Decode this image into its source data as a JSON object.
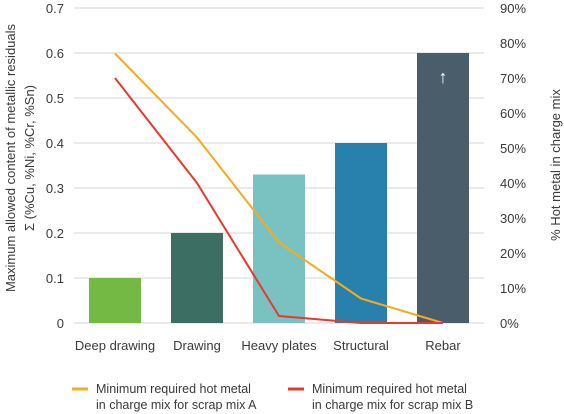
{
  "chart_data": {
    "type": "bar",
    "categories": [
      "Deep drawing",
      "Drawing",
      "Heavy plates",
      "Structural",
      "Rebar"
    ],
    "series": [
      {
        "values": [
          0.1,
          0.2,
          0.33,
          0.4,
          0.6
        ],
        "colors": [
          "#74b944",
          "#3d6e63",
          "#79c2c1",
          "#2881ad",
          "#4a5d6a"
        ]
      }
    ],
    "rebar_marker": "↑",
    "lines": [
      {
        "name": "Minimum required hot metal in charge mix for scrap mix A",
        "legend_lines": [
          "Minimum required hot metal",
          "in charge mix for scrap mix A"
        ],
        "color": "#f4ab1f",
        "axis": "right",
        "points": [
          {
            "x": "Deep drawing",
            "y": 77
          },
          {
            "x": "Drawing",
            "y": 53
          },
          {
            "x": "Heavy plates",
            "y": 23
          },
          {
            "x": "Structural",
            "y": 7
          },
          {
            "x": "Rebar",
            "y": 0
          }
        ]
      },
      {
        "name": "Minimum required hot metal in charge mix for scrap mix B",
        "legend_lines": [
          "Minimum required hot metal",
          "in charge mix for scrap mix B"
        ],
        "color": "#e8392e",
        "axis": "right",
        "points": [
          {
            "x": "Deep drawing",
            "y": 70
          },
          {
            "x": "Drawing",
            "y": 40
          },
          {
            "x": "Heavy plates",
            "y": 2
          },
          {
            "x": "Structural",
            "y": 0
          },
          {
            "x": "Rebar",
            "y": 0
          }
        ]
      }
    ],
    "left_axis": {
      "label_lines": [
        "Maximum allowed content of metallic residuals",
        "Σ (%Cu, %Ni, %Cr, %Sn)"
      ],
      "ylim": [
        0,
        0.7
      ],
      "ticks": [
        "0",
        "0.1",
        "0.2",
        "0.3",
        "0.4",
        "0.5",
        "0.6",
        "0.7"
      ]
    },
    "right_axis": {
      "label": "% Hot metal in charge mix",
      "ylim": [
        0,
        90
      ],
      "ticks": [
        "0%",
        "10%",
        "20%",
        "30%",
        "40%",
        "50%",
        "60%",
        "70%",
        "80%",
        "90%"
      ]
    },
    "grid": true,
    "legend_position": "bottom"
  }
}
